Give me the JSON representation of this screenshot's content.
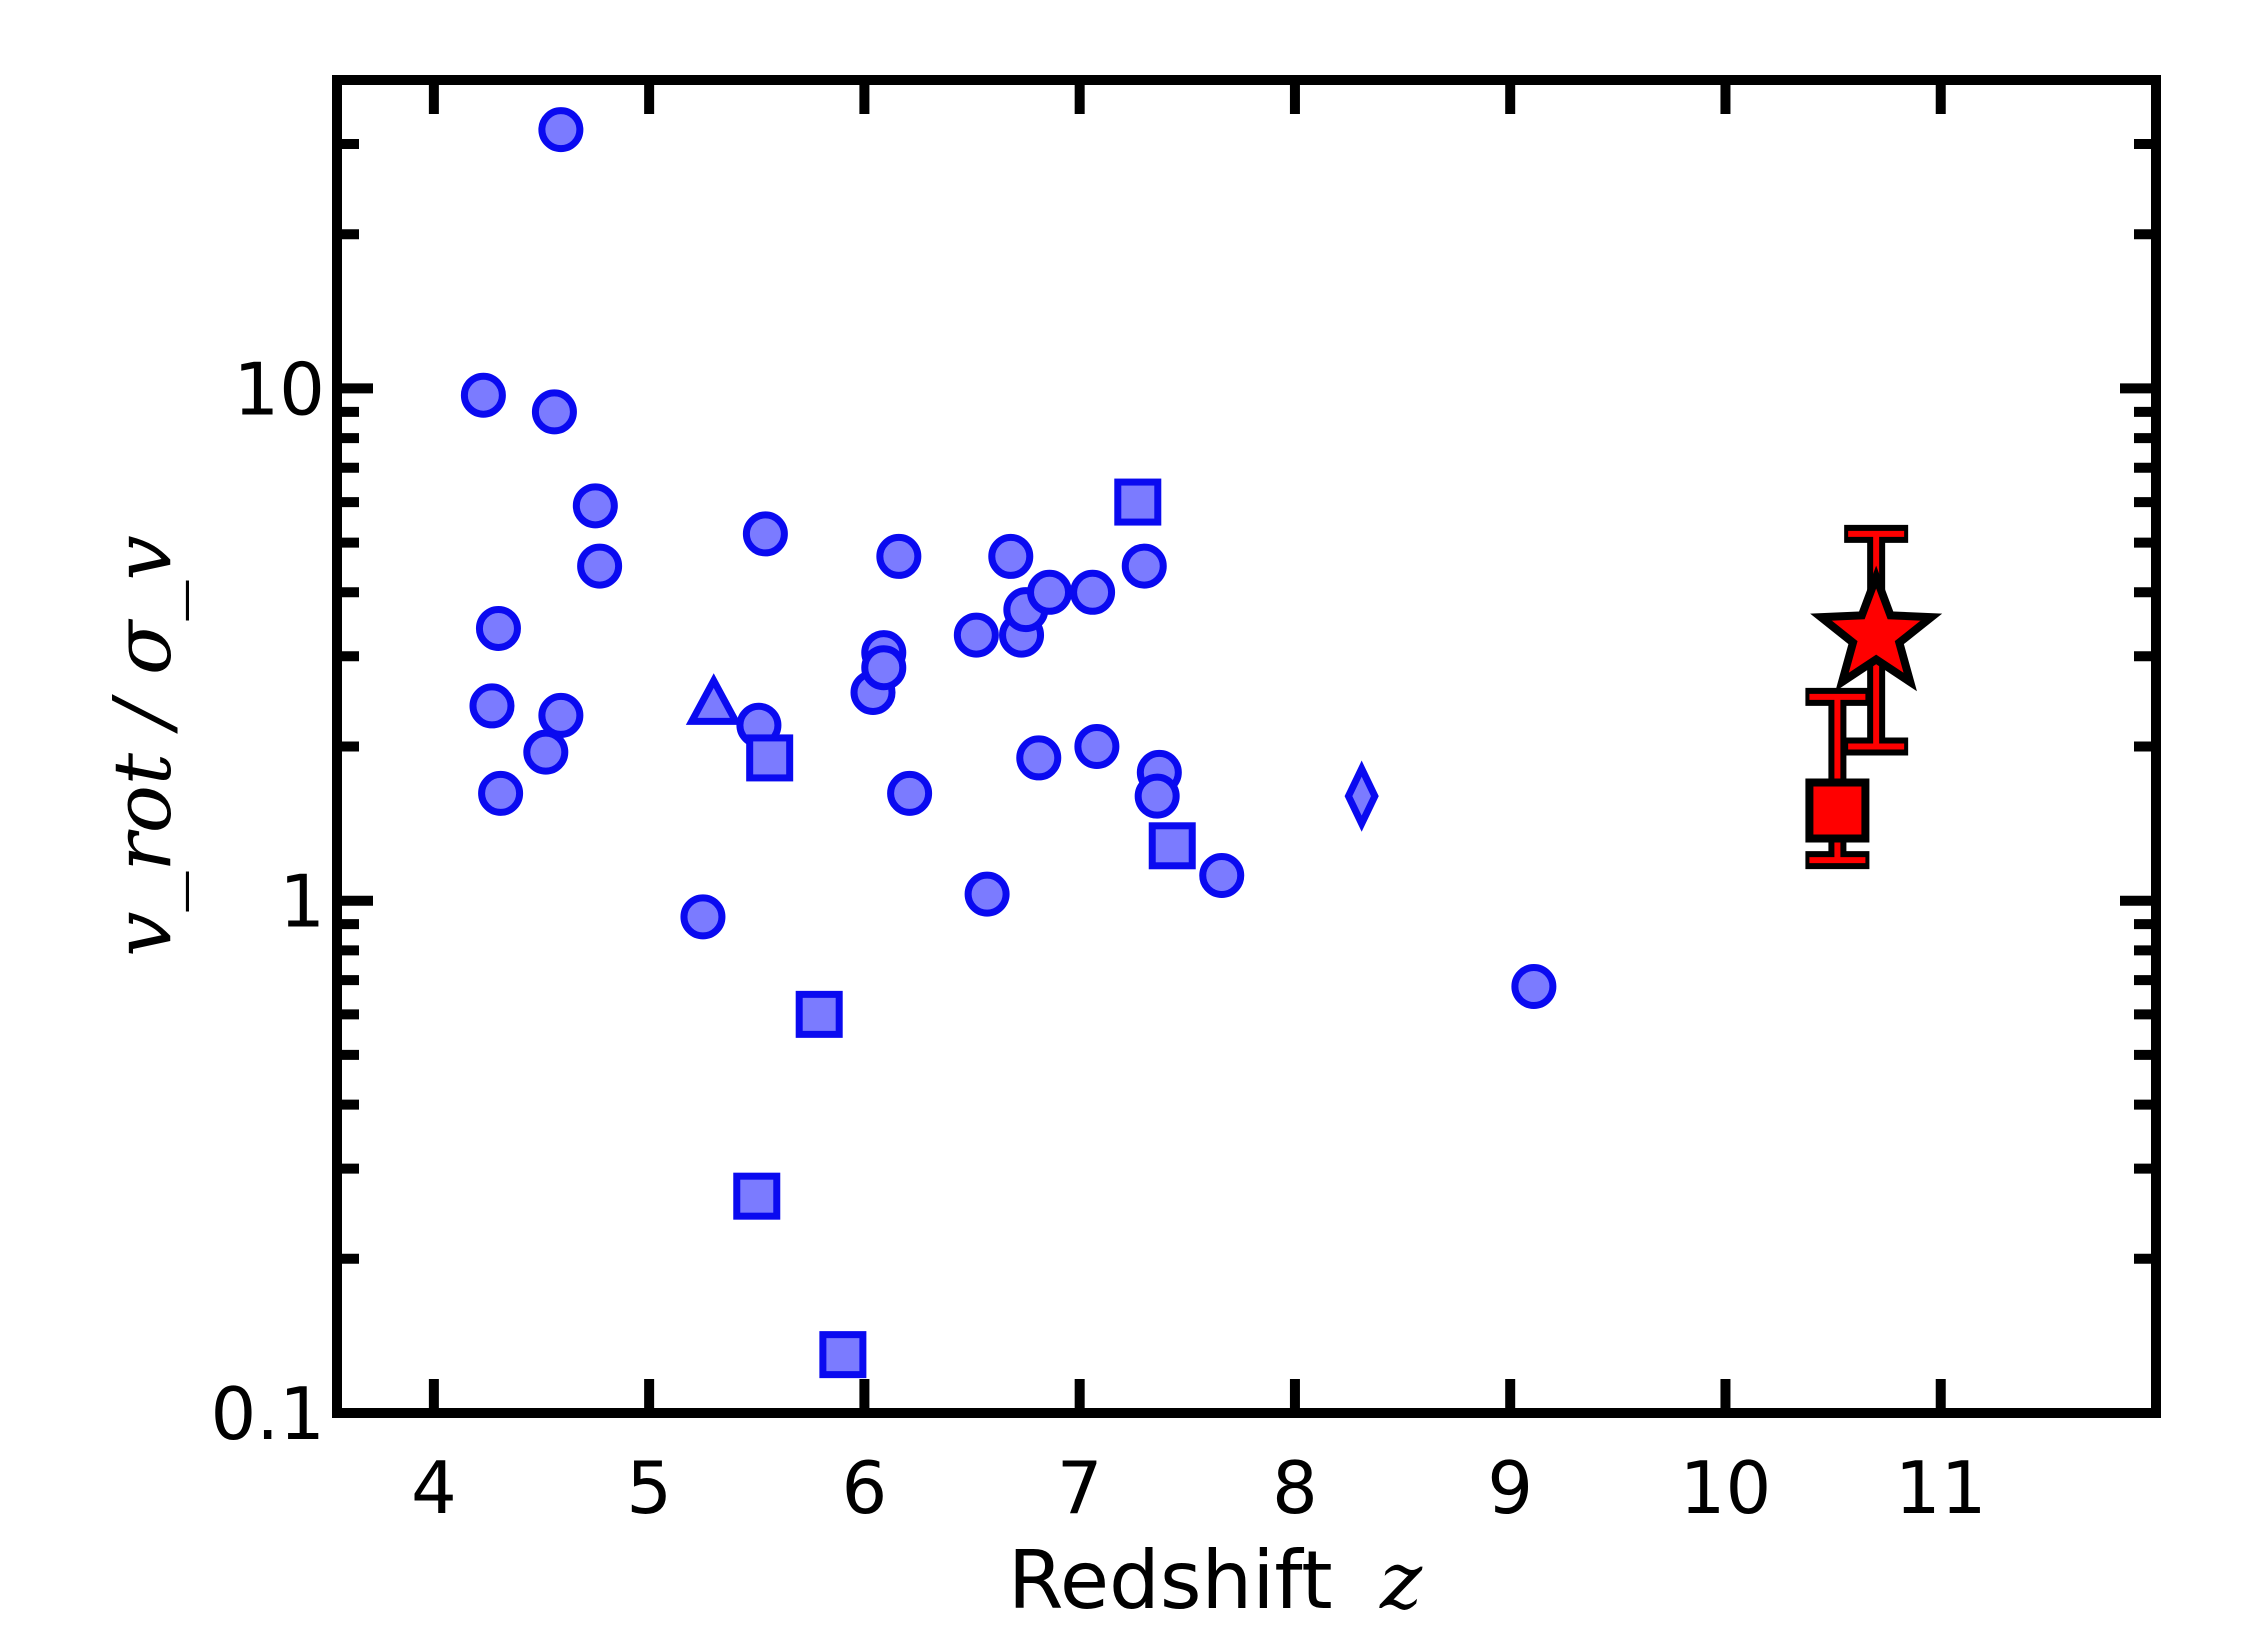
{
  "chart_data": {
    "type": "scatter",
    "title": "",
    "xlabel": "Redshift",
    "xlabel_var": "z",
    "ylabel": "v_rot / σ_v",
    "xlim": [
      3.55,
      12.0
    ],
    "ylim": [
      0.1,
      40
    ],
    "yscale": "log",
    "grid": false,
    "x_ticks": [
      4,
      5,
      6,
      7,
      8,
      9,
      10,
      11
    ],
    "x_tick_labels": [
      "4",
      "5",
      "6",
      "7",
      "8",
      "9",
      "10",
      "11"
    ],
    "y_ticks": [
      0.1,
      1,
      10
    ],
    "y_tick_labels": [
      "0.1",
      "1",
      "10"
    ],
    "colors": {
      "sample_fill": "#7b7bff",
      "sample_edge": "#0a0af0",
      "highlight_fill": "#ff0000",
      "highlight_edge": "#000000"
    },
    "series": [
      {
        "marker": "circle",
        "points": [
          {
            "x": 4.59,
            "y": 32.0
          },
          {
            "x": 4.23,
            "y": 9.7
          },
          {
            "x": 4.56,
            "y": 9.0
          },
          {
            "x": 4.75,
            "y": 5.9
          },
          {
            "x": 4.77,
            "y": 4.5
          },
          {
            "x": 4.3,
            "y": 3.4
          },
          {
            "x": 4.27,
            "y": 2.4
          },
          {
            "x": 4.59,
            "y": 2.3
          },
          {
            "x": 4.52,
            "y": 1.95
          },
          {
            "x": 4.31,
            "y": 1.62
          },
          {
            "x": 5.25,
            "y": 0.93
          },
          {
            "x": 5.54,
            "y": 5.2
          },
          {
            "x": 5.51,
            "y": 2.2
          },
          {
            "x": 6.04,
            "y": 2.55
          },
          {
            "x": 6.09,
            "y": 3.05
          },
          {
            "x": 6.09,
            "y": 2.85
          },
          {
            "x": 6.16,
            "y": 4.7
          },
          {
            "x": 6.21,
            "y": 1.62
          },
          {
            "x": 6.52,
            "y": 3.3
          },
          {
            "x": 6.57,
            "y": 1.03
          },
          {
            "x": 6.68,
            "y": 4.7
          },
          {
            "x": 6.73,
            "y": 3.3
          },
          {
            "x": 6.75,
            "y": 3.7
          },
          {
            "x": 6.81,
            "y": 1.9
          },
          {
            "x": 6.86,
            "y": 4.0
          },
          {
            "x": 7.06,
            "y": 4.0
          },
          {
            "x": 7.08,
            "y": 2.0
          },
          {
            "x": 7.3,
            "y": 4.5
          },
          {
            "x": 7.37,
            "y": 1.78
          },
          {
            "x": 7.36,
            "y": 1.6
          },
          {
            "x": 7.66,
            "y": 1.12
          },
          {
            "x": 9.11,
            "y": 0.68
          }
        ]
      },
      {
        "marker": "square",
        "points": [
          {
            "x": 7.27,
            "y": 6.0
          },
          {
            "x": 5.56,
            "y": 1.9
          },
          {
            "x": 7.43,
            "y": 1.28
          },
          {
            "x": 5.79,
            "y": 0.6
          },
          {
            "x": 5.5,
            "y": 0.265
          },
          {
            "x": 5.9,
            "y": 0.13
          }
        ]
      },
      {
        "marker": "triangle",
        "points": [
          {
            "x": 5.3,
            "y": 2.4
          }
        ]
      },
      {
        "marker": "diamond",
        "points": [
          {
            "x": 8.31,
            "y": 1.6
          }
        ]
      }
    ],
    "highlighted": [
      {
        "marker": "star",
        "x": 10.7,
        "y": 3.3,
        "yerr_low": 2.0,
        "yerr_high": 5.2
      },
      {
        "marker": "square",
        "x": 10.52,
        "y": 1.5,
        "yerr_low": 1.2,
        "yerr_high": 2.5
      }
    ]
  }
}
